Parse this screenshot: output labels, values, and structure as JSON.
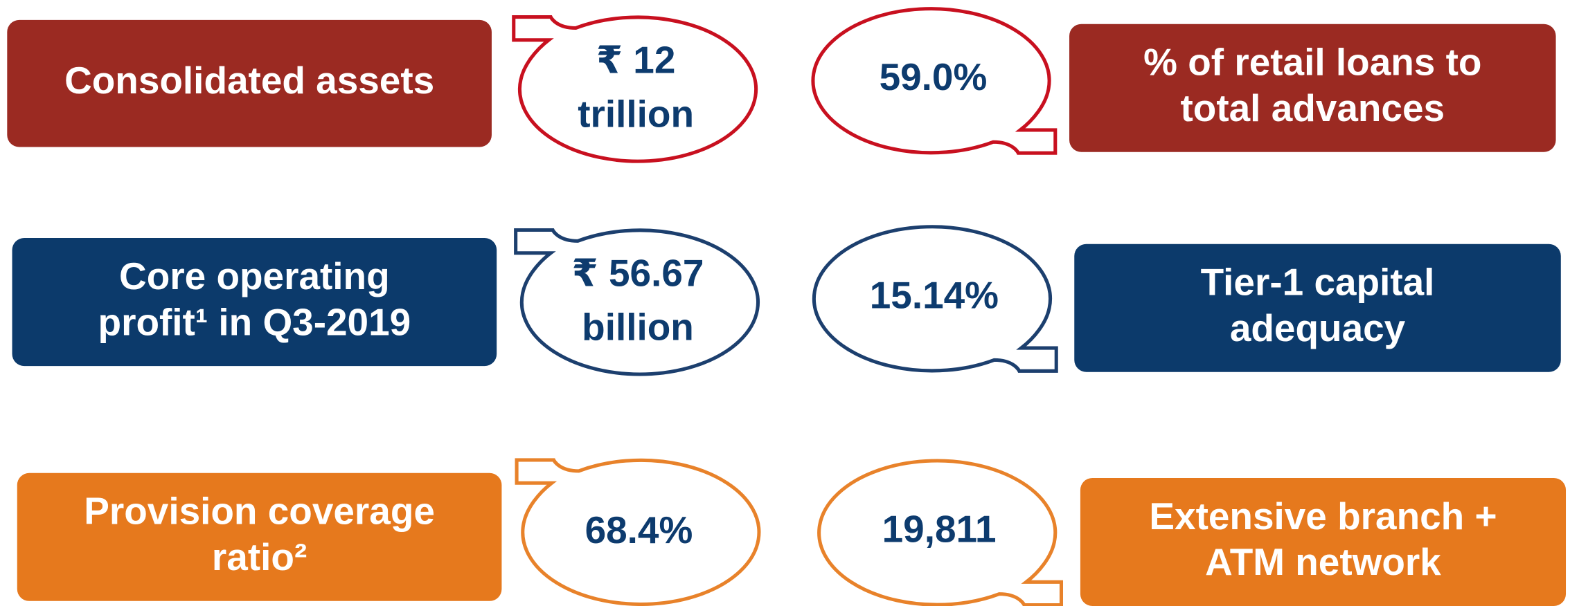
{
  "items": [
    {
      "label": [
        "Consolidated assets"
      ],
      "value": [
        "₹  12",
        "trillion"
      ]
    },
    {
      "label": [
        "% of retail loans to",
        "total advances"
      ],
      "value": [
        "59.0%"
      ]
    },
    {
      "label": [
        "Core operating",
        "profit¹ in Q3-2019"
      ],
      "value": [
        "₹  56.67",
        "billion"
      ]
    },
    {
      "label": [
        "Tier-1 capital",
        "adequacy"
      ],
      "value": [
        "15.14%"
      ]
    },
    {
      "label": [
        "Provision coverage",
        "ratio²"
      ],
      "value": [
        "68.4%"
      ]
    },
    {
      "label": [
        "Extensive branch +",
        "ATM network"
      ],
      "value": [
        "19,811"
      ]
    }
  ]
}
